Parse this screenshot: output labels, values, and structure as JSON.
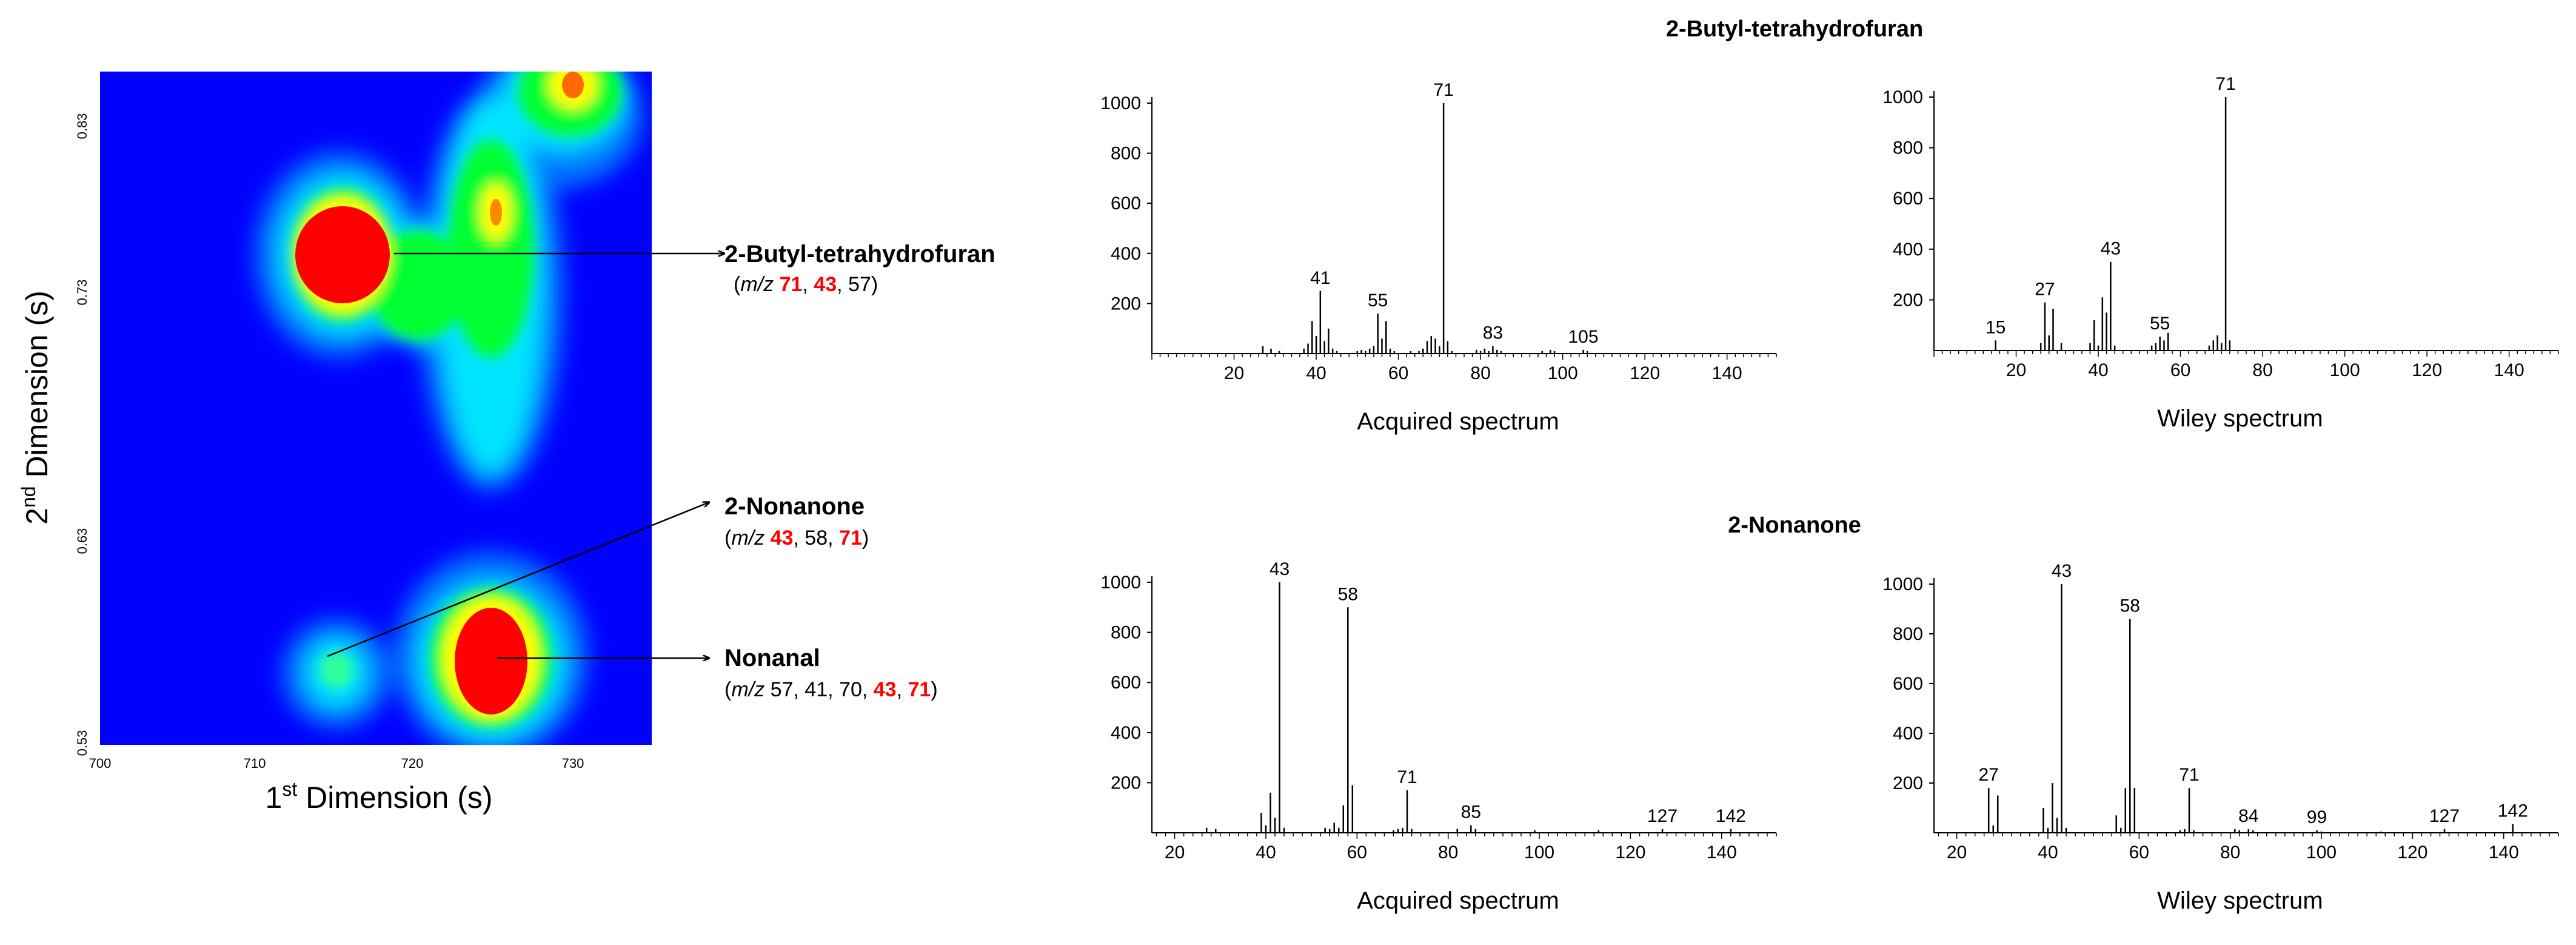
{
  "colors": {
    "bg": "#0000ff",
    "low": "#0066ff",
    "mid": "#00ffff",
    "high": "#00ff00",
    "higher": "#ffff00",
    "peak": "#ff0000",
    "ion_highlight": "#ff0000",
    "text": "#000000"
  },
  "heatmap": {
    "x_axis_label": {
      "sup": "st",
      "lead": "1",
      "rest": " Dimension (s)"
    },
    "y_axis_label": {
      "sup": "nd",
      "lead": "2",
      "rest": " Dimension (s)"
    },
    "x_ticks": [
      "700",
      "710",
      "720",
      "730"
    ],
    "y_ticks": [
      "0.83",
      "0.73",
      "0.63",
      "0.53"
    ],
    "peaks": [
      {
        "name": "2-Butyl-tetrahydrofuran",
        "mz_prefix": "m/z",
        "ions": [
          {
            "v": "71",
            "hl": true
          },
          {
            "v": "43",
            "hl": true
          },
          {
            "v": "57",
            "hl": false
          }
        ]
      },
      {
        "name": "2-Nonanone",
        "mz_prefix": "m/z",
        "ions": [
          {
            "v": "43",
            "hl": true
          },
          {
            "v": "58",
            "hl": false
          },
          {
            "v": "71",
            "hl": true
          }
        ]
      },
      {
        "name": "Nonanal",
        "mz_prefix": "m/z",
        "ions": [
          {
            "v": "57",
            "hl": false
          },
          {
            "v": "41",
            "hl": false
          },
          {
            "v": "70",
            "hl": false
          },
          {
            "v": "43",
            "hl": true
          },
          {
            "v": "71",
            "hl": true
          }
        ]
      }
    ]
  },
  "spectra_sections": [
    {
      "title": "2-Butyl-tetrahydrofuran"
    },
    {
      "title": "2-Nonanone"
    }
  ],
  "chart_data": [
    {
      "type": "bar",
      "title": "2-Butyl-tetrahydrofuran",
      "xlabel": "Acquired spectrum",
      "ylabel": "",
      "xlim": [
        0,
        152
      ],
      "ylim": [
        0,
        1000
      ],
      "x_ticks": [
        "20",
        "40",
        "60",
        "80",
        "100",
        "120",
        "140"
      ],
      "y_ticks": [
        "200",
        "400",
        "600",
        "800",
        "1000"
      ],
      "peaks": [
        [
          27,
          30
        ],
        [
          29,
          20
        ],
        [
          31,
          10
        ],
        [
          37,
          20
        ],
        [
          38,
          40
        ],
        [
          39,
          130
        ],
        [
          40,
          70
        ],
        [
          41,
          250
        ],
        [
          42,
          50
        ],
        [
          43,
          100
        ],
        [
          44,
          20
        ],
        [
          45,
          10
        ],
        [
          50,
          10
        ],
        [
          51,
          15
        ],
        [
          52,
          10
        ],
        [
          53,
          20
        ],
        [
          54,
          30
        ],
        [
          55,
          160
        ],
        [
          56,
          60
        ],
        [
          57,
          130
        ],
        [
          58,
          20
        ],
        [
          59,
          10
        ],
        [
          63,
          10
        ],
        [
          65,
          10
        ],
        [
          66,
          20
        ],
        [
          67,
          50
        ],
        [
          68,
          70
        ],
        [
          69,
          60
        ],
        [
          70,
          30
        ],
        [
          71,
          1000
        ],
        [
          72,
          50
        ],
        [
          73,
          10
        ],
        [
          79,
          15
        ],
        [
          80,
          10
        ],
        [
          81,
          20
        ],
        [
          82,
          10
        ],
        [
          83,
          30
        ],
        [
          84,
          15
        ],
        [
          85,
          10
        ],
        [
          95,
          10
        ],
        [
          97,
          15
        ],
        [
          98,
          10
        ],
        [
          105,
          15
        ],
        [
          106,
          10
        ]
      ],
      "labels": [
        {
          "x": 41,
          "text": "41"
        },
        {
          "x": 55,
          "text": "55"
        },
        {
          "x": 71,
          "text": "71"
        },
        {
          "x": 83,
          "text": "83"
        },
        {
          "x": 105,
          "text": "105"
        }
      ]
    },
    {
      "type": "bar",
      "title": "2-Butyl-tetrahydrofuran",
      "xlabel": "Wiley spectrum",
      "ylabel": "",
      "xlim": [
        0,
        152
      ],
      "ylim": [
        0,
        1000
      ],
      "x_ticks": [
        "20",
        "40",
        "60",
        "80",
        "100",
        "120",
        "140"
      ],
      "y_ticks": [
        "200",
        "400",
        "600",
        "800",
        "1000"
      ],
      "peaks": [
        [
          15,
          40
        ],
        [
          26,
          30
        ],
        [
          27,
          190
        ],
        [
          28,
          60
        ],
        [
          29,
          165
        ],
        [
          31,
          30
        ],
        [
          38,
          30
        ],
        [
          39,
          120
        ],
        [
          40,
          20
        ],
        [
          41,
          210
        ],
        [
          42,
          150
        ],
        [
          43,
          350
        ],
        [
          44,
          20
        ],
        [
          53,
          20
        ],
        [
          54,
          30
        ],
        [
          55,
          55
        ],
        [
          56,
          40
        ],
        [
          57,
          70
        ],
        [
          67,
          20
        ],
        [
          68,
          40
        ],
        [
          69,
          60
        ],
        [
          70,
          30
        ],
        [
          71,
          1000
        ],
        [
          72,
          40
        ]
      ],
      "labels": [
        {
          "x": 15,
          "text": "15"
        },
        {
          "x": 27,
          "text": "27"
        },
        {
          "x": 43,
          "text": "43"
        },
        {
          "x": 55,
          "text": "55"
        },
        {
          "x": 71,
          "text": "71"
        }
      ]
    },
    {
      "type": "bar",
      "title": "2-Nonanone",
      "xlabel": "Acquired spectrum",
      "ylabel": "",
      "xlim": [
        15,
        152
      ],
      "ylim": [
        0,
        1000
      ],
      "x_ticks": [
        "20",
        "40",
        "60",
        "80",
        "100",
        "120",
        "140"
      ],
      "y_ticks": [
        "200",
        "400",
        "600",
        "800",
        "1000"
      ],
      "peaks": [
        [
          27,
          20
        ],
        [
          29,
          15
        ],
        [
          39,
          80
        ],
        [
          40,
          30
        ],
        [
          41,
          160
        ],
        [
          42,
          60
        ],
        [
          43,
          1000
        ],
        [
          44,
          20
        ],
        [
          53,
          20
        ],
        [
          54,
          15
        ],
        [
          55,
          40
        ],
        [
          56,
          20
        ],
        [
          57,
          110
        ],
        [
          58,
          900
        ],
        [
          59,
          190
        ],
        [
          68,
          10
        ],
        [
          69,
          15
        ],
        [
          70,
          20
        ],
        [
          71,
          170
        ],
        [
          72,
          15
        ],
        [
          82,
          15
        ],
        [
          85,
          30
        ],
        [
          86,
          15
        ],
        [
          99,
          10
        ],
        [
          113,
          10
        ],
        [
          127,
          15
        ],
        [
          142,
          15
        ]
      ],
      "labels": [
        {
          "x": 43,
          "text": "43"
        },
        {
          "x": 58,
          "text": "58"
        },
        {
          "x": 71,
          "text": "71"
        },
        {
          "x": 85,
          "text": "85"
        },
        {
          "x": 127,
          "text": "127"
        },
        {
          "x": 142,
          "text": "142"
        }
      ]
    },
    {
      "type": "bar",
      "title": "2-Nonanone",
      "xlabel": "Wiley spectrum",
      "ylabel": "",
      "xlim": [
        15,
        152
      ],
      "ylim": [
        0,
        1000
      ],
      "x_ticks": [
        "20",
        "40",
        "60",
        "80",
        "100",
        "120",
        "140"
      ],
      "y_ticks": [
        "200",
        "400",
        "600",
        "800",
        "1000"
      ],
      "peaks": [
        [
          27,
          180
        ],
        [
          28,
          30
        ],
        [
          29,
          150
        ],
        [
          39,
          100
        ],
        [
          40,
          20
        ],
        [
          41,
          200
        ],
        [
          42,
          60
        ],
        [
          43,
          1000
        ],
        [
          44,
          20
        ],
        [
          55,
          70
        ],
        [
          56,
          20
        ],
        [
          57,
          180
        ],
        [
          58,
          860
        ],
        [
          59,
          180
        ],
        [
          69,
          10
        ],
        [
          70,
          15
        ],
        [
          71,
          180
        ],
        [
          72,
          10
        ],
        [
          81,
          15
        ],
        [
          82,
          10
        ],
        [
          84,
          15
        ],
        [
          85,
          10
        ],
        [
          99,
          10
        ],
        [
          100,
          5
        ],
        [
          113,
          5
        ],
        [
          127,
          15
        ],
        [
          142,
          35
        ]
      ],
      "labels": [
        {
          "x": 27,
          "text": "27"
        },
        {
          "x": 43,
          "text": "43"
        },
        {
          "x": 58,
          "text": "58"
        },
        {
          "x": 71,
          "text": "71"
        },
        {
          "x": 84,
          "text": "84"
        },
        {
          "x": 99,
          "text": "99"
        },
        {
          "x": 127,
          "text": "127"
        },
        {
          "x": 142,
          "text": "142"
        }
      ]
    }
  ]
}
